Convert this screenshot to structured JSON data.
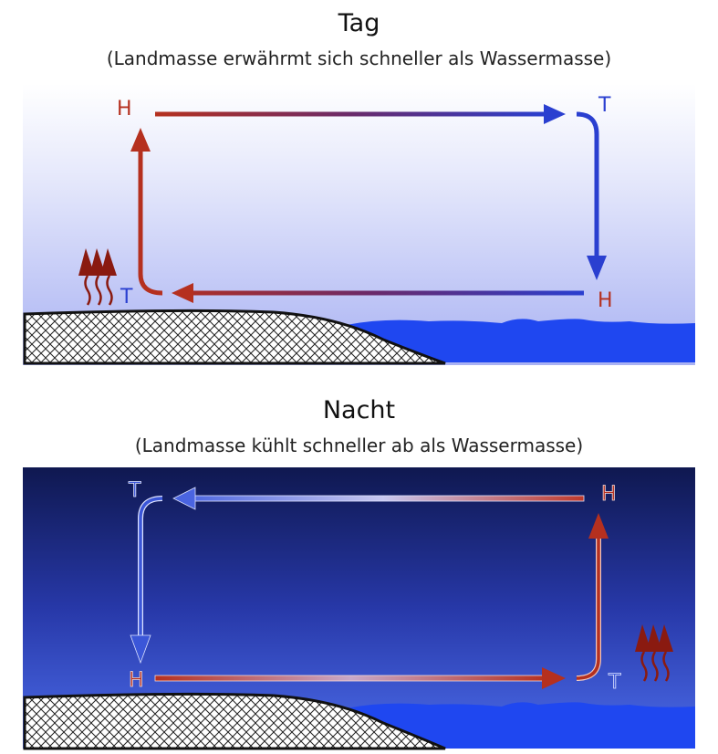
{
  "day": {
    "title": "Tag",
    "subtitle": "(Landmasse erwährmt sich schneller als Wassermasse)",
    "labels": {
      "top_left": "H",
      "top_right": "T",
      "bottom_right": "H",
      "bottom_left": "T"
    },
    "colors": {
      "sky_top": "#dfe2fa",
      "sky_bottom": "#a7b1f4",
      "warm": "#b5301f",
      "cool": "#2a3fd0",
      "water": "#1f47f0"
    }
  },
  "night": {
    "title": "Nacht",
    "subtitle": "(Landmasse kühlt schneller ab als Wassermasse)",
    "labels": {
      "top_left": "T",
      "top_right": "H",
      "bottom_left": "H",
      "bottom_right": "T"
    },
    "colors": {
      "sky_top": "#111a55",
      "sky_bottom": "#4a6ae8",
      "warm": "#b5301f",
      "cool": "#5a78f0",
      "water": "#1f47f0"
    }
  }
}
